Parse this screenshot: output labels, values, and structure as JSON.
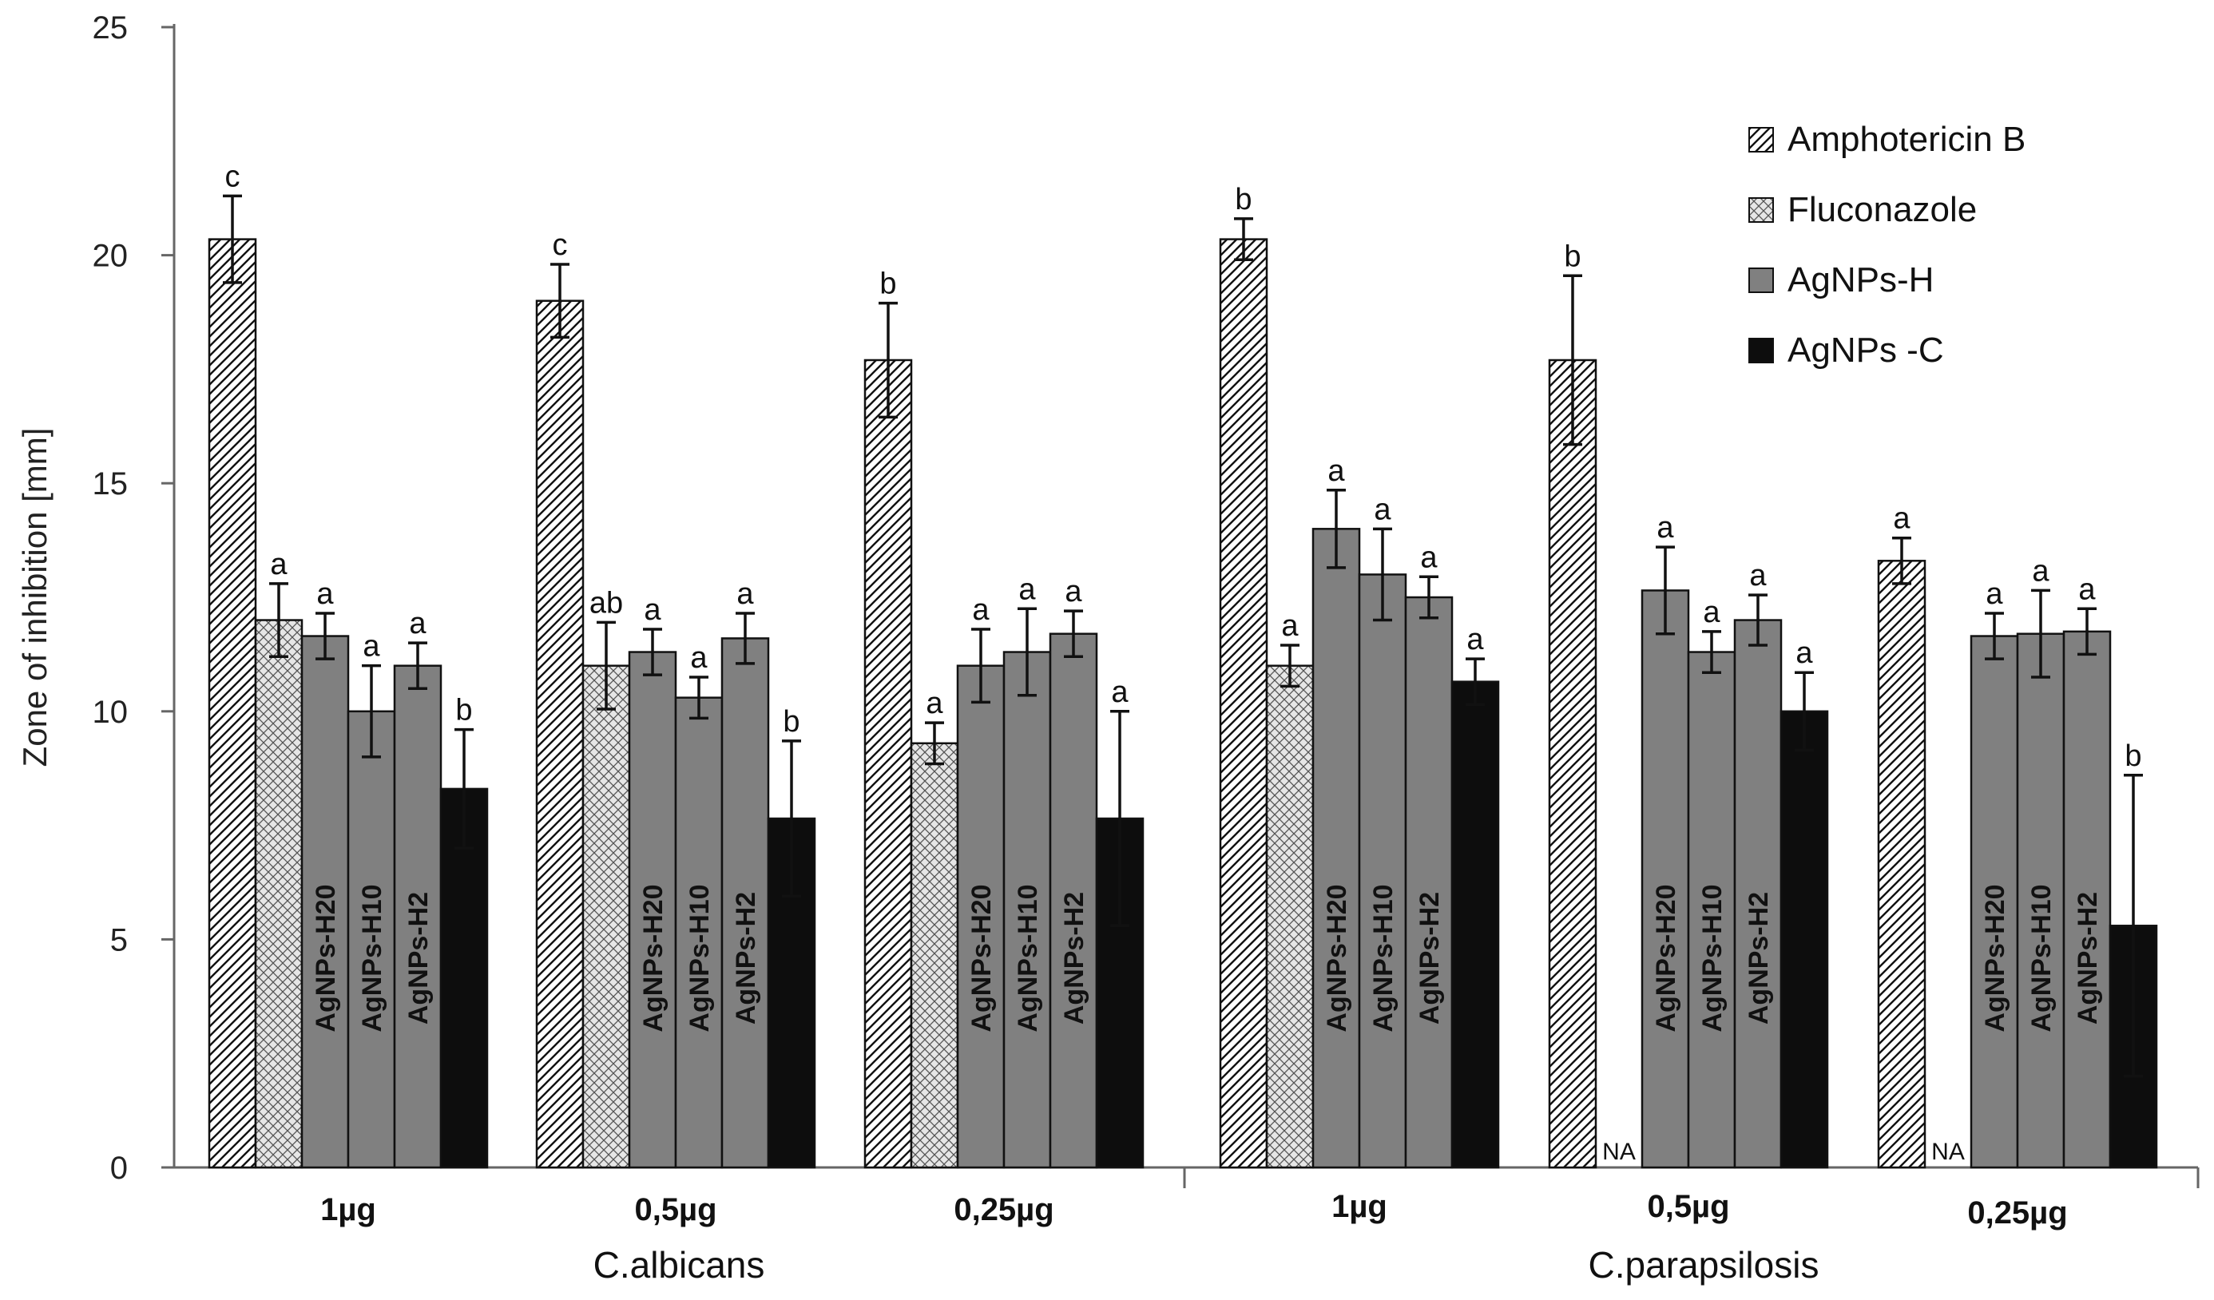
{
  "chart_data": {
    "type": "bar",
    "title": "",
    "ylabel": "Zone of inhibition [mm]",
    "xlabel": "",
    "ylim": [
      0,
      25
    ],
    "yticks": [
      0,
      5,
      10,
      15,
      20,
      25
    ],
    "grid": false,
    "legend_position": "top-right",
    "groups": [
      {
        "name": "C.albicans",
        "categories": [
          "1µg",
          "0,5µg",
          "0,25µg"
        ]
      },
      {
        "name": "C.parapsilosis",
        "categories": [
          "1µg",
          "0,5µg",
          "0,25µg"
        ]
      }
    ],
    "legend": [
      {
        "name": "Amphotericin B",
        "pattern": "diagonal",
        "color": "#ffffff"
      },
      {
        "name": "Fluconazole",
        "pattern": "crosshatch",
        "color": "#cfcfcf"
      },
      {
        "name": "AgNPs-H",
        "pattern": "solid",
        "color": "#808080"
      },
      {
        "name": "AgNPs -C",
        "pattern": "solid",
        "color": "#0d0d0d"
      }
    ],
    "bar_inner_labels": [
      "AgNPs-H20",
      "AgNPs-H10",
      "AgNPs-H2"
    ],
    "na_label": "NA",
    "clusters": [
      {
        "label": "1µg",
        "group": "C.albicans",
        "bars": [
          {
            "series": "Amphotericin B",
            "value": 20.35,
            "err": 0.95,
            "sig": "c"
          },
          {
            "series": "Fluconazole",
            "value": 12.0,
            "err": 0.8,
            "sig": "a"
          },
          {
            "series": "AgNPs-H",
            "sub": "AgNPs-H20",
            "value": 11.65,
            "err": 0.5,
            "sig": "a"
          },
          {
            "series": "AgNPs-H",
            "sub": "AgNPs-H10",
            "value": 10.0,
            "err": 1.0,
            "sig": "a"
          },
          {
            "series": "AgNPs-H",
            "sub": "AgNPs-H2",
            "value": 11.0,
            "err": 0.5,
            "sig": "a"
          },
          {
            "series": "AgNPs -C",
            "value": 8.3,
            "err": 1.3,
            "sig": "b"
          }
        ]
      },
      {
        "label": "0,5µg",
        "group": "C.albicans",
        "bars": [
          {
            "series": "Amphotericin B",
            "value": 19.0,
            "err": 0.8,
            "sig": "c"
          },
          {
            "series": "Fluconazole",
            "value": 11.0,
            "err": 0.95,
            "sig": "ab"
          },
          {
            "series": "AgNPs-H",
            "sub": "AgNPs-H20",
            "value": 11.3,
            "err": 0.5,
            "sig": "a"
          },
          {
            "series": "AgNPs-H",
            "sub": "AgNPs-H10",
            "value": 10.3,
            "err": 0.45,
            "sig": "a"
          },
          {
            "series": "AgNPs-H",
            "sub": "AgNPs-H2",
            "value": 11.6,
            "err": 0.55,
            "sig": "a"
          },
          {
            "series": "AgNPs -C",
            "value": 7.65,
            "err": 1.7,
            "sig": "b"
          }
        ]
      },
      {
        "label": "0,25µg",
        "group": "C.albicans",
        "bars": [
          {
            "series": "Amphotericin B",
            "value": 17.7,
            "err": 1.25,
            "sig": "b"
          },
          {
            "series": "Fluconazole",
            "value": 9.3,
            "err": 0.45,
            "sig": "a"
          },
          {
            "series": "AgNPs-H",
            "sub": "AgNPs-H20",
            "value": 11.0,
            "err": 0.8,
            "sig": "a"
          },
          {
            "series": "AgNPs-H",
            "sub": "AgNPs-H10",
            "value": 11.3,
            "err": 0.95,
            "sig": "a"
          },
          {
            "series": "AgNPs-H",
            "sub": "AgNPs-H2",
            "value": 11.7,
            "err": 0.5,
            "sig": "a"
          },
          {
            "series": "AgNPs -C",
            "value": 7.65,
            "err": 2.35,
            "sig": "a"
          }
        ]
      },
      {
        "label": "1µg",
        "group": "C.parapsilosis",
        "bars": [
          {
            "series": "Amphotericin B",
            "value": 20.35,
            "err": 0.45,
            "sig": "b"
          },
          {
            "series": "Fluconazole",
            "value": 11.0,
            "err": 0.45,
            "sig": "a"
          },
          {
            "series": "AgNPs-H",
            "sub": "AgNPs-H20",
            "value": 14.0,
            "err": 0.85,
            "sig": "a"
          },
          {
            "series": "AgNPs-H",
            "sub": "AgNPs-H10",
            "value": 13.0,
            "err": 1.0,
            "sig": "a"
          },
          {
            "series": "AgNPs-H",
            "sub": "AgNPs-H2",
            "value": 12.5,
            "err": 0.45,
            "sig": "a"
          },
          {
            "series": "AgNPs -C",
            "value": 10.65,
            "err": 0.5,
            "sig": "a"
          }
        ]
      },
      {
        "label": "0,5µg",
        "group": "C.parapsilosis",
        "bars": [
          {
            "series": "Amphotericin B",
            "value": 17.7,
            "err": 1.85,
            "sig": "b"
          },
          {
            "series": "Fluconazole",
            "value": null,
            "err": null,
            "sig": "",
            "na": true
          },
          {
            "series": "AgNPs-H",
            "sub": "AgNPs-H20",
            "value": 12.65,
            "err": 0.95,
            "sig": "a"
          },
          {
            "series": "AgNPs-H",
            "sub": "AgNPs-H10",
            "value": 11.3,
            "err": 0.45,
            "sig": "a"
          },
          {
            "series": "AgNPs-H",
            "sub": "AgNPs-H2",
            "value": 12.0,
            "err": 0.55,
            "sig": "a"
          },
          {
            "series": "AgNPs -C",
            "value": 10.0,
            "err": 0.85,
            "sig": "a"
          }
        ]
      },
      {
        "label": "0,25µg",
        "group": "C.parapsilosis",
        "bars": [
          {
            "series": "Amphotericin B",
            "value": 13.3,
            "err": 0.5,
            "sig": "a"
          },
          {
            "series": "Fluconazole",
            "value": null,
            "err": null,
            "sig": "",
            "na": true
          },
          {
            "series": "AgNPs-H",
            "sub": "AgNPs-H20",
            "value": 11.65,
            "err": 0.5,
            "sig": "a"
          },
          {
            "series": "AgNPs-H",
            "sub": "AgNPs-H10",
            "value": 11.7,
            "err": 0.95,
            "sig": "a"
          },
          {
            "series": "AgNPs-H",
            "sub": "AgNPs-H2",
            "value": 11.75,
            "err": 0.5,
            "sig": "a"
          },
          {
            "series": "AgNPs -C",
            "value": 5.3,
            "err": 3.3,
            "sig": "b"
          }
        ]
      }
    ]
  }
}
